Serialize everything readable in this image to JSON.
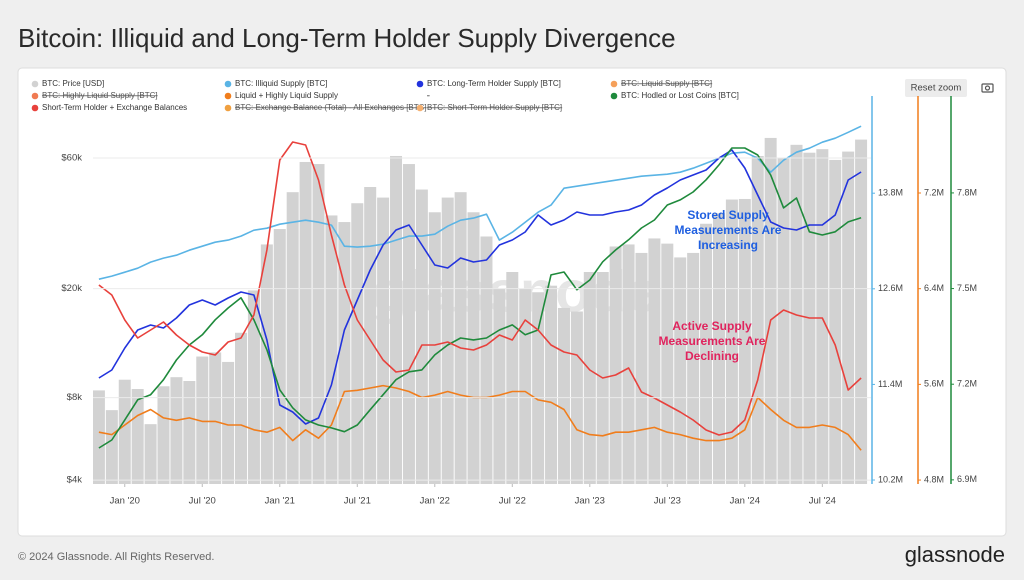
{
  "chart_data": {
    "type": "line",
    "title": "Bitcoin: Illiquid and Long-Term Holder Supply Divergence",
    "watermark": "glassnode",
    "reset_button": "Reset zoom",
    "footer": "© 2024 Glassnode. All Rights Reserved.",
    "brand": "glassnode",
    "annotations": [
      {
        "text": "Stored Supply Measurements Are Increasing",
        "color": "#1f5fe0"
      },
      {
        "text": "Active Supply Measurements Are Declining",
        "color": "#e0245e"
      }
    ],
    "x": [
      "2019-11",
      "2019-12",
      "2020-01",
      "2020-02",
      "2020-03",
      "2020-04",
      "2020-05",
      "2020-06",
      "2020-07",
      "2020-08",
      "2020-09",
      "2020-10",
      "2020-11",
      "2020-12",
      "2021-01",
      "2021-02",
      "2021-03",
      "2021-04",
      "2021-05",
      "2021-06",
      "2021-07",
      "2021-08",
      "2021-09",
      "2021-10",
      "2021-11",
      "2021-12",
      "2022-01",
      "2022-02",
      "2022-03",
      "2022-04",
      "2022-05",
      "2022-06",
      "2022-07",
      "2022-08",
      "2022-09",
      "2022-10",
      "2022-11",
      "2022-12",
      "2023-01",
      "2023-02",
      "2023-03",
      "2023-04",
      "2023-05",
      "2023-06",
      "2023-07",
      "2023-08",
      "2023-09",
      "2023-10",
      "2023-11",
      "2023-12",
      "2024-01",
      "2024-02",
      "2024-03",
      "2024-04",
      "2024-05",
      "2024-06",
      "2024-07",
      "2024-08",
      "2024-09",
      "2024-10"
    ],
    "xlim": [
      "2019-10",
      "2024-11"
    ],
    "xticks": [
      {
        "value": "2020-01",
        "label": "Jan '20"
      },
      {
        "value": "2020-07",
        "label": "Jul '20"
      },
      {
        "value": "2021-01",
        "label": "Jan '21"
      },
      {
        "value": "2021-07",
        "label": "Jul '21"
      },
      {
        "value": "2022-01",
        "label": "Jan '22"
      },
      {
        "value": "2022-07",
        "label": "Jul '22"
      },
      {
        "value": "2023-01",
        "label": "Jan '23"
      },
      {
        "value": "2023-07",
        "label": "Jul '23"
      },
      {
        "value": "2024-01",
        "label": "Jan '24"
      },
      {
        "value": "2024-07",
        "label": "Jul '24"
      }
    ],
    "axes": {
      "price": {
        "ylim": [
          3870,
          101000
        ],
        "log": true,
        "grid": true,
        "side": "left",
        "yticks": [
          {
            "value": 4000,
            "label": "$4k"
          },
          {
            "value": 8000,
            "label": "$8k"
          },
          {
            "value": 20000,
            "label": "$20k"
          },
          {
            "value": 60000,
            "label": "$60k"
          }
        ]
      },
      "illiquid": {
        "ylim": [
          10150000,
          15020000
        ],
        "side": "right",
        "color": "#5ab4e5",
        "yticks": [
          {
            "value": 10200000,
            "label": "10.2M"
          },
          {
            "value": 11400000,
            "label": "11.4M"
          },
          {
            "value": 12600000,
            "label": "12.6M"
          },
          {
            "value": 13800000,
            "label": "13.8M"
          }
        ]
      },
      "liquid": {
        "ylim": [
          4767000,
          8011000
        ],
        "side": "right",
        "color": "#f07d1c",
        "yticks": [
          {
            "value": 4800000,
            "label": "4.8M"
          },
          {
            "value": 5600000,
            "label": "5.6M"
          },
          {
            "value": 6400000,
            "label": "6.4M"
          },
          {
            "value": 7200000,
            "label": "7.2M"
          }
        ]
      },
      "hodled": {
        "ylim": [
          6887000,
          8104000
        ],
        "side": "right",
        "color": "#1f8a3c",
        "yticks": [
          {
            "value": 6900000,
            "label": "6.9M"
          },
          {
            "value": 7200000,
            "label": "7.2M"
          },
          {
            "value": 7500000,
            "label": "7.5M"
          },
          {
            "value": 7800000,
            "label": "7.8M"
          }
        ]
      },
      "lth": {
        "ylim": [
          11000000,
          14880000
        ]
      },
      "sth": {
        "ylim": [
          3000000,
          6880000
        ]
      }
    },
    "series": [
      {
        "name": "BTC: Price [USD]",
        "type": "bar",
        "axis": "price",
        "color": "#d2d2d2",
        "values": [
          8500,
          7200,
          9300,
          8600,
          6400,
          8800,
          9500,
          9200,
          11300,
          11700,
          10800,
          13800,
          19700,
          29000,
          33000,
          45000,
          58000,
          57000,
          37000,
          35000,
          41000,
          47000,
          43000,
          61000,
          57000,
          46000,
          38000,
          43000,
          45000,
          38000,
          31000,
          20000,
          23000,
          20000,
          19400,
          20500,
          17000,
          16500,
          23000,
          23000,
          28500,
          29000,
          27000,
          30500,
          29200,
          26000,
          27000,
          34500,
          37700,
          42300,
          42500,
          61000,
          71000,
          60000,
          67000,
          62700,
          64600,
          59000,
          63300,
          70000
        ]
      },
      {
        "name": "BTC: Illiquid Supply [BTC]",
        "axis": "illiquid",
        "color": "#5ab4e5",
        "values": [
          12721000,
          12759000,
          12809000,
          12859000,
          12935000,
          12985000,
          13022000,
          13085000,
          13135000,
          13185000,
          13211000,
          13261000,
          13336000,
          13361000,
          13411000,
          13436000,
          13461000,
          13436000,
          13399000,
          13135000,
          13123000,
          13135000,
          13160000,
          13211000,
          13261000,
          13261000,
          13286000,
          13386000,
          13461000,
          13487000,
          13537000,
          13211000,
          13311000,
          13436000,
          13562000,
          13650000,
          13863000,
          13888000,
          13913000,
          13938000,
          13963000,
          13988000,
          14013000,
          14026000,
          14038000,
          14064000,
          14114000,
          14176000,
          14239000,
          14302000,
          14314000,
          14239000,
          14064000,
          14214000,
          14314000,
          14365000,
          14440000,
          14490000,
          14565000,
          14641000
        ]
      },
      {
        "name": "BTC: Long-Term Holder Supply [BTC]",
        "axis": "lth",
        "color": "#2233dd",
        "values": [
          12060000,
          12140000,
          12360000,
          12540000,
          12590000,
          12560000,
          12660000,
          12790000,
          12840000,
          12790000,
          12860000,
          12920000,
          12890000,
          12440000,
          11790000,
          11720000,
          11600000,
          11660000,
          11990000,
          12540000,
          12840000,
          13140000,
          13390000,
          13540000,
          13590000,
          13390000,
          13190000,
          13160000,
          13260000,
          13220000,
          13240000,
          13390000,
          13440000,
          13520000,
          13690000,
          13590000,
          13640000,
          13720000,
          13690000,
          13690000,
          13720000,
          13740000,
          13790000,
          13890000,
          13960000,
          14040000,
          14090000,
          14140000,
          14260000,
          14340000,
          14160000,
          13890000,
          13620000,
          13560000,
          13540000,
          13590000,
          13590000,
          13690000,
          14040000,
          14120000
        ]
      },
      {
        "name": "Liquid + Highly Liquid Supply",
        "axis": "liquid",
        "color": "#f07d1c",
        "values": [
          5200000,
          5180000,
          5260000,
          5340000,
          5390000,
          5320000,
          5300000,
          5320000,
          5290000,
          5290000,
          5260000,
          5260000,
          5220000,
          5200000,
          5240000,
          5130000,
          5220000,
          5150000,
          5260000,
          5540000,
          5550000,
          5570000,
          5590000,
          5570000,
          5540000,
          5490000,
          5510000,
          5540000,
          5510000,
          5490000,
          5490000,
          5510000,
          5540000,
          5540000,
          5470000,
          5450000,
          5390000,
          5220000,
          5180000,
          5170000,
          5200000,
          5200000,
          5220000,
          5240000,
          5200000,
          5180000,
          5150000,
          5130000,
          5130000,
          5150000,
          5220000,
          5490000,
          5390000,
          5300000,
          5240000,
          5240000,
          5260000,
          5240000,
          5180000,
          5050000
        ]
      },
      {
        "name": "BTC: Hodled or Lost Coins [BTC]",
        "axis": "hodled",
        "color": "#1f8a3c",
        "values": [
          7000000,
          7025000,
          7088000,
          7151000,
          7167000,
          7214000,
          7276000,
          7323000,
          7355000,
          7402000,
          7439000,
          7471000,
          7402000,
          7308000,
          7182000,
          7126000,
          7088000,
          7072000,
          7063000,
          7051000,
          7072000,
          7120000,
          7167000,
          7214000,
          7239000,
          7245000,
          7292000,
          7323000,
          7345000,
          7339000,
          7345000,
          7370000,
          7386000,
          7355000,
          7370000,
          7543000,
          7552000,
          7496000,
          7527000,
          7584000,
          7621000,
          7653000,
          7690000,
          7715000,
          7762000,
          7778000,
          7803000,
          7841000,
          7888000,
          7941000,
          7941000,
          7919000,
          7856000,
          7753000,
          7784000,
          7678000,
          7668000,
          7678000,
          7709000,
          7722000
        ]
      },
      {
        "name": "Short-Term Holder + Exchange Balances",
        "axis": "sth",
        "color": "#e8413c",
        "values": [
          4990000,
          4890000,
          4640000,
          4460000,
          4540000,
          4620000,
          4490000,
          4390000,
          4320000,
          4290000,
          4420000,
          4460000,
          4690000,
          5340000,
          6240000,
          6420000,
          6390000,
          6040000,
          5490000,
          4990000,
          4640000,
          4440000,
          4240000,
          4120000,
          4140000,
          4390000,
          4390000,
          4420000,
          4360000,
          4340000,
          4390000,
          4490000,
          4440000,
          4640000,
          4540000,
          4390000,
          4320000,
          4290000,
          4140000,
          4060000,
          4090000,
          4160000,
          3920000,
          3860000,
          3790000,
          3720000,
          3640000,
          3540000,
          3490000,
          3520000,
          3640000,
          4040000,
          4640000,
          4740000,
          4690000,
          4660000,
          4660000,
          4390000,
          3940000,
          4060000
        ]
      }
    ],
    "hidden_series": [
      {
        "name": "BTC: Liquid Supply [BTC]",
        "color": "#f5a05a"
      },
      {
        "name": "BTC: Highly Liquid Supply [BTC]",
        "color": "#f07a52"
      },
      {
        "name": "-"
      },
      {
        "name": "BTC: Exchange Balance (Total) - All Exchanges [BTC]",
        "color": "#f0a040"
      },
      {
        "name": "BTC: Short-Term Holder Supply [BTC]",
        "color": "#f5b070"
      }
    ]
  }
}
